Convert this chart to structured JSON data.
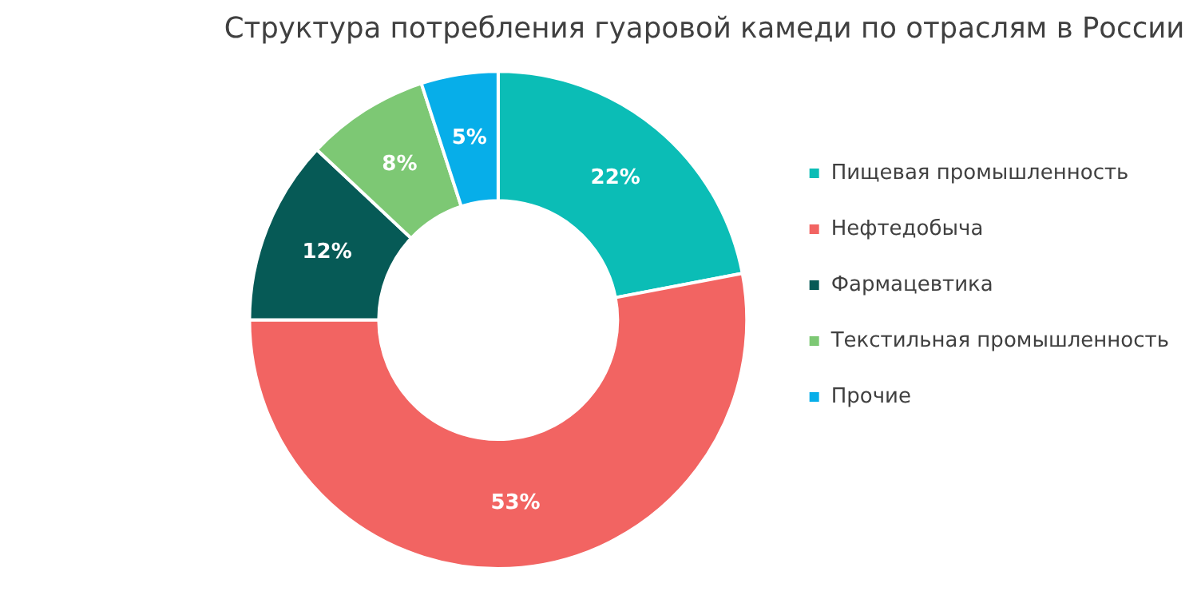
{
  "chart_data": {
    "type": "donut",
    "title": "Структура потребления гуаровой камеди по отраслям в России",
    "categories": [
      "Пищевая промышленность",
      "Нефтедобыча",
      "Фармацевтика",
      "Текстильная промышленность",
      "Прочие"
    ],
    "values": [
      22,
      53,
      12,
      8,
      5
    ],
    "value_labels": [
      "22%",
      "53%",
      "12%",
      "8%",
      "5%"
    ],
    "colors": [
      "#0bbdb6",
      "#f26462",
      "#065a56",
      "#7dc874",
      "#07aee9"
    ],
    "legend": "right"
  }
}
